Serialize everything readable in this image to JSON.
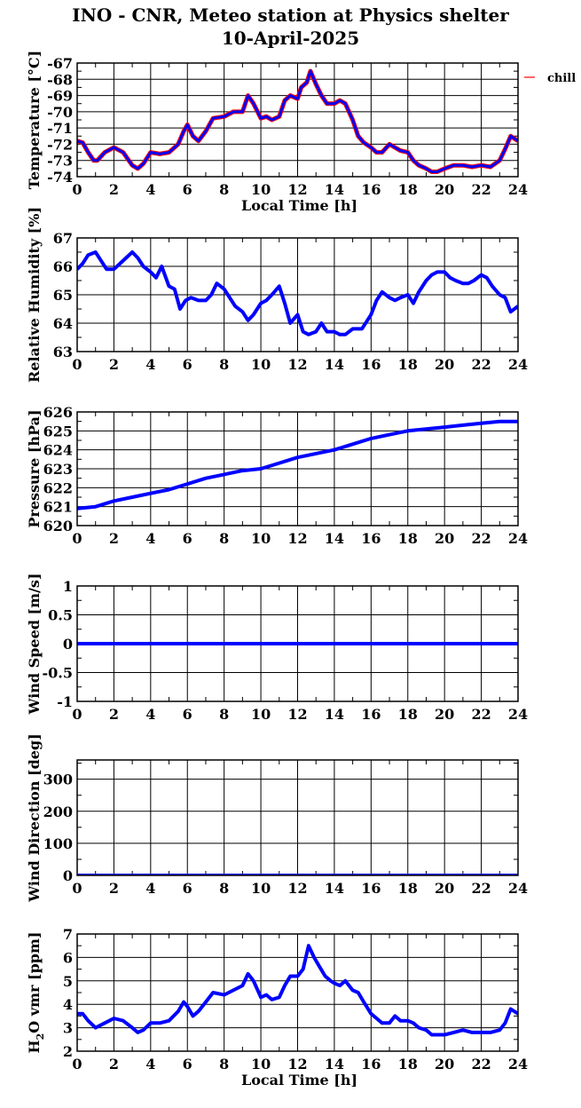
{
  "header": {
    "title": "INO - CNR, Meteo station at Physics shelter",
    "date": "10-April-2025"
  },
  "colors": {
    "line": "#0000ff",
    "chill": "#ff0000",
    "grid": "#000000"
  },
  "chart_data": [
    {
      "type": "line",
      "ylabel": "Temperature [°C]",
      "xlabel": "Local Time [h]",
      "xlim": [
        0,
        24
      ],
      "ylim": [
        -74,
        -67
      ],
      "yticks": [
        -74,
        -73,
        -72,
        -71,
        -70,
        -69,
        -68,
        -67
      ],
      "xticks": [
        0,
        2,
        4,
        6,
        8,
        10,
        12,
        14,
        16,
        18,
        20,
        22,
        24
      ],
      "legend": "right",
      "series": [
        {
          "name": "",
          "color": "#0000ff",
          "x": [
            0,
            0.3,
            0.6,
            0.9,
            1.1,
            1.5,
            2.0,
            2.5,
            3.0,
            3.3,
            3.6,
            4.0,
            4.5,
            5.0,
            5.5,
            5.8,
            6.0,
            6.3,
            6.6,
            7.0,
            7.4,
            8.0,
            8.5,
            9.0,
            9.3,
            9.6,
            10.0,
            10.3,
            10.6,
            11.0,
            11.3,
            11.6,
            12.0,
            12.2,
            12.5,
            12.7,
            13.0,
            13.3,
            13.6,
            14.0,
            14.3,
            14.6,
            15.0,
            15.3,
            15.6,
            16.0,
            16.3,
            16.6,
            17.0,
            17.3,
            17.6,
            18.0,
            18.3,
            18.6,
            19.0,
            19.3,
            19.6,
            20.0,
            20.5,
            21.0,
            21.5,
            22.0,
            22.5,
            23.0,
            23.3,
            23.6,
            24.0
          ],
          "y": [
            -71.8,
            -71.9,
            -72.5,
            -73.0,
            -73.0,
            -72.5,
            -72.2,
            -72.5,
            -73.3,
            -73.5,
            -73.2,
            -72.5,
            -72.6,
            -72.5,
            -72.0,
            -71.2,
            -70.8,
            -71.5,
            -71.8,
            -71.2,
            -70.4,
            -70.3,
            -70.0,
            -70.0,
            -69.0,
            -69.5,
            -70.4,
            -70.3,
            -70.5,
            -70.3,
            -69.3,
            -69.0,
            -69.2,
            -68.5,
            -68.2,
            -67.5,
            -68.3,
            -69.0,
            -69.5,
            -69.5,
            -69.3,
            -69.5,
            -70.5,
            -71.5,
            -71.9,
            -72.2,
            -72.5,
            -72.5,
            -72.0,
            -72.2,
            -72.4,
            -72.5,
            -73.0,
            -73.3,
            -73.5,
            -73.7,
            -73.7,
            -73.5,
            -73.3,
            -73.3,
            -73.4,
            -73.3,
            -73.4,
            -73.0,
            -72.3,
            -71.5,
            -71.8
          ]
        }
      ]
    },
    {
      "type": "line",
      "ylabel": "Relative Humidity [%]",
      "xlim": [
        0,
        24
      ],
      "ylim": [
        63,
        67
      ],
      "yticks": [
        63,
        64,
        65,
        66,
        67
      ],
      "xticks": [
        0,
        2,
        4,
        6,
        8,
        10,
        12,
        14,
        16,
        18,
        20,
        22,
        24
      ],
      "series": [
        {
          "name": "",
          "color": "#0000ff",
          "x": [
            0,
            0.3,
            0.6,
            1.0,
            1.3,
            1.6,
            2.0,
            2.5,
            3.0,
            3.3,
            3.6,
            4.0,
            4.3,
            4.6,
            5.0,
            5.3,
            5.6,
            5.9,
            6.2,
            6.6,
            7.0,
            7.3,
            7.6,
            8.0,
            8.3,
            8.6,
            9.0,
            9.3,
            9.6,
            10.0,
            10.3,
            10.6,
            11.0,
            11.3,
            11.6,
            12.0,
            12.3,
            12.6,
            13.0,
            13.3,
            13.6,
            14.0,
            14.3,
            14.6,
            15.0,
            15.5,
            16.0,
            16.3,
            16.6,
            17.0,
            17.3,
            17.6,
            18.0,
            18.3,
            18.6,
            19.0,
            19.3,
            19.6,
            20.0,
            20.3,
            20.6,
            21.0,
            21.3,
            21.6,
            22.0,
            22.3,
            22.6,
            23.0,
            23.3,
            23.6,
            24.0
          ],
          "y": [
            65.9,
            66.1,
            66.4,
            66.5,
            66.2,
            65.9,
            65.9,
            66.2,
            66.5,
            66.3,
            66.0,
            65.8,
            65.6,
            66.0,
            65.3,
            65.2,
            64.5,
            64.8,
            64.9,
            64.8,
            64.8,
            65.0,
            65.4,
            65.2,
            64.9,
            64.6,
            64.4,
            64.1,
            64.3,
            64.7,
            64.8,
            65.0,
            65.3,
            64.7,
            64.0,
            64.3,
            63.7,
            63.6,
            63.7,
            64.0,
            63.7,
            63.7,
            63.6,
            63.6,
            63.8,
            63.8,
            64.3,
            64.8,
            65.1,
            64.9,
            64.8,
            64.9,
            65.0,
            64.7,
            65.1,
            65.5,
            65.7,
            65.8,
            65.8,
            65.6,
            65.5,
            65.4,
            65.4,
            65.5,
            65.7,
            65.6,
            65.3,
            65.0,
            64.9,
            64.4,
            64.6
          ]
        }
      ]
    },
    {
      "type": "line",
      "ylabel": "Pressure [hPa]",
      "xlim": [
        0,
        24
      ],
      "ylim": [
        620,
        626
      ],
      "yticks": [
        620,
        621,
        622,
        623,
        624,
        625,
        626
      ],
      "xticks": [
        0,
        2,
        4,
        6,
        8,
        10,
        12,
        14,
        16,
        18,
        20,
        22,
        24
      ],
      "series": [
        {
          "name": "",
          "color": "#0000ff",
          "x": [
            0,
            1,
            2,
            3,
            4,
            5,
            6,
            7,
            8,
            9,
            10,
            11,
            12,
            13,
            14,
            15,
            16,
            17,
            18,
            19,
            20,
            21,
            22,
            23,
            24
          ],
          "y": [
            620.9,
            621.0,
            621.3,
            621.5,
            621.7,
            621.9,
            622.2,
            622.5,
            622.7,
            622.9,
            623.0,
            623.3,
            623.6,
            623.8,
            624.0,
            624.3,
            624.6,
            624.8,
            625.0,
            625.1,
            625.2,
            625.3,
            625.4,
            625.5,
            625.5
          ]
        }
      ]
    },
    {
      "type": "line",
      "ylabel": "Wind Speed [m/s]",
      "xlim": [
        0,
        24
      ],
      "ylim": [
        -1,
        1
      ],
      "yticks": [
        -1,
        -0.5,
        0,
        0.5,
        1
      ],
      "xticks": [
        0,
        2,
        4,
        6,
        8,
        10,
        12,
        14,
        16,
        18,
        20,
        22,
        24
      ],
      "series": [
        {
          "name": "",
          "color": "#0000ff",
          "x": [
            0,
            24
          ],
          "y": [
            0,
            0
          ]
        }
      ]
    },
    {
      "type": "line",
      "ylabel": "Wind Direction [deg]",
      "xlim": [
        0,
        24
      ],
      "ylim": [
        0,
        360
      ],
      "yticks": [
        0,
        100,
        200,
        300
      ],
      "xticks": [
        0,
        2,
        4,
        6,
        8,
        10,
        12,
        14,
        16,
        18,
        20,
        22,
        24
      ],
      "series": [
        {
          "name": "",
          "color": "#0000ff",
          "x": [
            0,
            24
          ],
          "y": [
            0,
            0
          ]
        }
      ]
    },
    {
      "type": "line",
      "ylabel": "H2O vmr [ppm]",
      "xlabel": "Local Time [h]",
      "xlim": [
        0,
        24
      ],
      "ylim": [
        2,
        7
      ],
      "yticks": [
        2,
        3,
        4,
        5,
        6,
        7
      ],
      "xticks": [
        0,
        2,
        4,
        6,
        8,
        10,
        12,
        14,
        16,
        18,
        20,
        22,
        24
      ],
      "series": [
        {
          "name": "",
          "color": "#0000ff",
          "x": [
            0,
            0.3,
            0.6,
            1.0,
            1.5,
            2.0,
            2.5,
            3.0,
            3.3,
            3.6,
            4.0,
            4.5,
            5.0,
            5.5,
            5.8,
            6.0,
            6.3,
            6.6,
            7.0,
            7.4,
            8.0,
            8.5,
            9.0,
            9.3,
            9.6,
            10.0,
            10.3,
            10.6,
            11.0,
            11.3,
            11.6,
            12.0,
            12.3,
            12.6,
            12.9,
            13.2,
            13.5,
            13.8,
            14.0,
            14.3,
            14.6,
            15.0,
            15.3,
            15.6,
            16.0,
            16.3,
            16.6,
            17.0,
            17.3,
            17.6,
            18.0,
            18.3,
            18.6,
            19.0,
            19.3,
            19.6,
            20.0,
            20.5,
            21.0,
            21.5,
            22.0,
            22.5,
            23.0,
            23.3,
            23.6,
            24.0
          ],
          "y": [
            3.6,
            3.6,
            3.3,
            3.0,
            3.2,
            3.4,
            3.3,
            3.0,
            2.8,
            2.9,
            3.2,
            3.2,
            3.3,
            3.7,
            4.1,
            3.9,
            3.5,
            3.7,
            4.1,
            4.5,
            4.4,
            4.6,
            4.8,
            5.3,
            5.0,
            4.3,
            4.4,
            4.2,
            4.3,
            4.8,
            5.2,
            5.2,
            5.5,
            6.5,
            6.0,
            5.6,
            5.2,
            5.0,
            4.9,
            4.8,
            5.0,
            4.6,
            4.5,
            4.1,
            3.6,
            3.4,
            3.2,
            3.2,
            3.5,
            3.3,
            3.3,
            3.2,
            3.0,
            2.9,
            2.7,
            2.7,
            2.7,
            2.8,
            2.9,
            2.8,
            2.8,
            2.8,
            2.9,
            3.2,
            3.8,
            3.6
          ]
        }
      ]
    }
  ],
  "legend": {
    "label": "chill"
  }
}
